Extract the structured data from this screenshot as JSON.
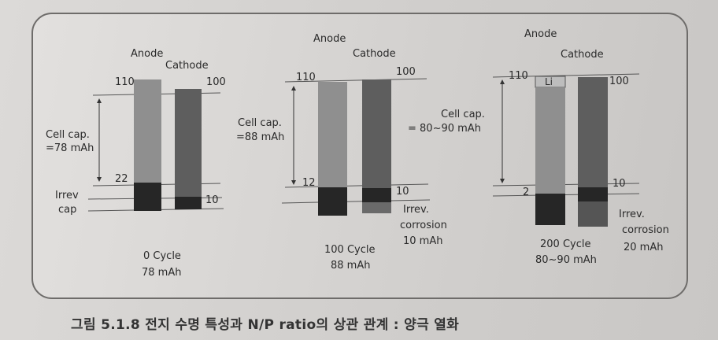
{
  "panels": [
    {
      "anode_label": "Anode",
      "cathode_label": "Cathode",
      "anode_top": "110",
      "cathode_top": "100",
      "anode_bottom": "22",
      "cathode_bottom": "10",
      "cell_cap_line1": "Cell cap.",
      "cell_cap_line2": "=78 mAh",
      "irrev_line1": "Irrev",
      "irrev_line2": "cap",
      "cycle_line1": "0  Cycle",
      "cycle_line2": "78 mAh"
    },
    {
      "anode_label": "Anode",
      "cathode_label": "Cathode",
      "anode_top": "110",
      "cathode_top": "100",
      "anode_bottom": "12",
      "cathode_bottom": "10",
      "cell_cap_line1": "Cell cap.",
      "cell_cap_line2": "=88 mAh",
      "irrev_line1": "Irrev.",
      "irrev_line2": "corrosion",
      "irrev_line3": "10 mAh",
      "cycle_line1": "100  Cycle",
      "cycle_line2": "88 mAh"
    },
    {
      "anode_label": "Anode",
      "cathode_label": "Cathode",
      "anode_top": "110",
      "cathode_top": "100",
      "anode_bottom": "2",
      "cathode_bottom": "10",
      "li_label": "Li",
      "cell_cap_line1": "Cell cap.",
      "cell_cap_line2": "= 80~90 mAh",
      "irrev_line1": "Irrev.",
      "irrev_line2": "corrosion",
      "irrev_line3": "20 mAh",
      "cycle_line1": "200  Cycle",
      "cycle_line2": "80~90 mAh"
    }
  ],
  "caption": "그림 5.1.8  전지 수명 특성과 N/P ratio의 상관 관계 : 양극 열화",
  "colors": {
    "anode": "#8f8f8f",
    "cathode": "#5e5e5e",
    "irrev": "#262626",
    "line": "#555555"
  }
}
